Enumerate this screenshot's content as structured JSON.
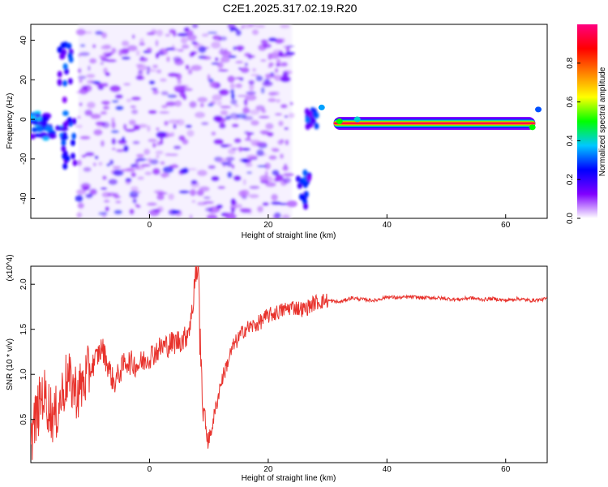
{
  "page": {
    "title": "C2E1.2025.317.02.19.R20"
  },
  "chart_data": [
    {
      "type": "heatmap",
      "title": "C2E1.2025.317.02.19.R20",
      "xlabel": "Height of straight line (km)",
      "ylabel": "Frequency (Hz)",
      "xlim": [
        -20,
        67
      ],
      "ylim": [
        -50,
        48
      ],
      "x_ticks": [
        "0",
        "20",
        "40",
        "60"
      ],
      "y_ticks": [
        "40",
        "20",
        "0",
        "-20",
        "-40"
      ],
      "colorbar": {
        "label": "Normalized spectral amplitude",
        "range": [
          0,
          1
        ],
        "ticks": [
          "0.0",
          "0.2",
          "0.4",
          "0.6",
          "0.8"
        ],
        "colors": [
          "#ffffff",
          "#8000ff",
          "#0000ff",
          "#00c8ff",
          "#00ff00",
          "#ffff00",
          "#ff8000",
          "#ff0000",
          "#ff0080"
        ]
      },
      "features": [
        {
          "name": "noise region",
          "x_range": [
            -12,
            24
          ],
          "y_range": [
            -50,
            48
          ],
          "level": 0.2
        },
        {
          "name": "left blob",
          "x_range": [
            -20,
            -14
          ],
          "y_range": [
            -10,
            4
          ],
          "level": 0.3
        },
        {
          "name": "steady line",
          "x_range": [
            31,
            65
          ],
          "y": -2,
          "level": 0.95
        }
      ],
      "grid": false
    },
    {
      "type": "line",
      "xlabel": "Height of straight line (km)",
      "ylabel": "SNR (10 * v/v)",
      "y_multiplier": "(x10^4)",
      "xlim": [
        -20,
        67
      ],
      "ylim": [
        0.02,
        2.2
      ],
      "x_ticks": [
        "0",
        "20",
        "40",
        "60"
      ],
      "y_ticks": [
        "0.5",
        "1.0",
        "1.5",
        "2.0"
      ],
      "grid": false,
      "series": [
        {
          "color": "#e8332d",
          "x": [
            -20,
            -18,
            -16,
            -14,
            -12,
            -10,
            -8,
            -6,
            -4,
            -2,
            0,
            2,
            4,
            6,
            7,
            8,
            9,
            10,
            12,
            14,
            16,
            18,
            20,
            22,
            24,
            26,
            28,
            30,
            32,
            34,
            36,
            38,
            40,
            42,
            44,
            46,
            48,
            50,
            52,
            54,
            56,
            58,
            60,
            62,
            64,
            66,
            67
          ],
          "y": [
            0.3,
            0.8,
            0.5,
            0.95,
            0.8,
            1.05,
            1.3,
            0.9,
            1.15,
            1.1,
            1.2,
            1.3,
            1.35,
            1.4,
            1.6,
            2.15,
            0.6,
            0.25,
            0.9,
            1.3,
            1.5,
            1.55,
            1.65,
            1.7,
            1.75,
            1.72,
            1.8,
            1.82,
            1.8,
            1.85,
            1.83,
            1.82,
            1.86,
            1.85,
            1.86,
            1.85,
            1.85,
            1.84,
            1.83,
            1.85,
            1.83,
            1.84,
            1.82,
            1.84,
            1.82,
            1.83,
            1.84
          ]
        }
      ]
    }
  ]
}
